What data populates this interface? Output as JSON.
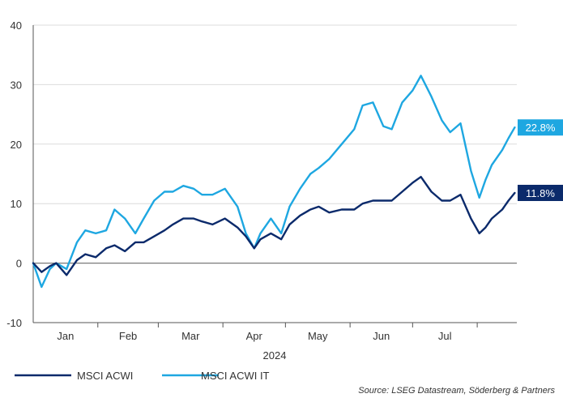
{
  "chart_data": {
    "type": "line",
    "title": "",
    "xlabel": "2024",
    "ylabel": "",
    "ylim": [
      -10,
      40
    ],
    "yticks": [
      -10,
      0,
      10,
      20,
      30,
      40
    ],
    "month_labels": [
      "Jan",
      "Feb",
      "Mar",
      "Apr",
      "May",
      "Jun",
      "Jul"
    ],
    "grid": true,
    "legend_position": "bottom-left",
    "x": [
      "2024-01-01",
      "2024-01-05",
      "2024-01-09",
      "2024-01-12",
      "2024-01-17",
      "2024-01-22",
      "2024-01-26",
      "2024-01-31",
      "2024-02-05",
      "2024-02-09",
      "2024-02-14",
      "2024-02-19",
      "2024-02-23",
      "2024-02-28",
      "2024-03-04",
      "2024-03-08",
      "2024-03-13",
      "2024-03-18",
      "2024-03-22",
      "2024-03-27",
      "2024-04-02",
      "2024-04-08",
      "2024-04-12",
      "2024-04-16",
      "2024-04-19",
      "2024-04-24",
      "2024-04-29",
      "2024-05-03",
      "2024-05-08",
      "2024-05-13",
      "2024-05-17",
      "2024-05-22",
      "2024-05-28",
      "2024-06-03",
      "2024-06-07",
      "2024-06-12",
      "2024-06-17",
      "2024-06-21",
      "2024-06-26",
      "2024-07-01",
      "2024-07-05",
      "2024-07-10",
      "2024-07-15",
      "2024-07-19",
      "2024-07-24",
      "2024-07-29",
      "2024-08-02",
      "2024-08-05",
      "2024-08-08",
      "2024-08-13",
      "2024-08-16",
      "2024-08-19"
    ],
    "series": [
      {
        "name": "MSCI ACWI",
        "color": "#0b2a6b",
        "values": [
          0,
          -1.5,
          -0.5,
          0,
          -2,
          0.5,
          1.5,
          1,
          2.5,
          3,
          2,
          3.5,
          3.5,
          4.5,
          5.5,
          6.5,
          7.5,
          7.5,
          7,
          6.5,
          7.5,
          6,
          4.5,
          2.5,
          4,
          5,
          4,
          6.5,
          8,
          9,
          9.5,
          8.5,
          9,
          9,
          10,
          10.5,
          10.5,
          10.5,
          12,
          13.5,
          14.5,
          12,
          10.5,
          10.5,
          11.5,
          7.5,
          5,
          6,
          7.5,
          9,
          10.5,
          11.8
        ]
      },
      {
        "name": "MSCI ACWI IT",
        "color": "#1ea7e1",
        "values": [
          0,
          -4,
          -1,
          0,
          -1,
          3.5,
          5.5,
          5,
          5.5,
          9,
          7.5,
          5,
          7.5,
          10.5,
          12,
          12,
          13,
          12.5,
          11.5,
          11.5,
          12.5,
          9.5,
          5,
          2.5,
          5,
          7.5,
          5,
          9.5,
          12.5,
          15,
          16,
          17.5,
          20,
          22.5,
          26.5,
          27,
          23,
          22.5,
          27,
          29,
          31.5,
          28,
          24,
          22,
          23.5,
          15.5,
          11,
          14,
          16.5,
          19,
          21,
          22.8
        ]
      }
    ],
    "end_labels": [
      {
        "series": "MSCI ACWI IT",
        "text": "22.8%"
      },
      {
        "series": "MSCI ACWI",
        "text": "11.8%"
      }
    ]
  },
  "legend": {
    "items": [
      {
        "label": "MSCI ACWI",
        "color": "#0b2a6b"
      },
      {
        "label": "MSCI ACWI IT",
        "color": "#1ea7e1"
      }
    ]
  },
  "source": "Source: LSEG Datastream, Söderberg & Partners"
}
